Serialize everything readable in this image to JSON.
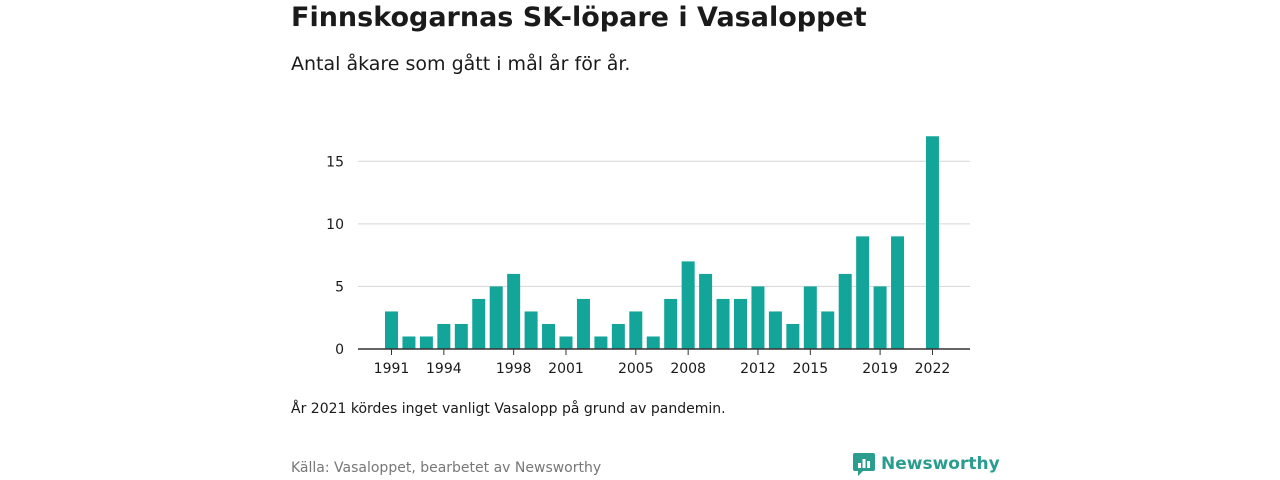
{
  "title": "Finnskogarnas SK-löpare i Vasaloppet",
  "subtitle": "Antal åkare som gått i mål år för år.",
  "note": "År 2021 kördes inget vanligt Vasalopp på grund av pandemin.",
  "source": "Källa: Vasaloppet, bearbetet av Newsworthy",
  "brand": {
    "name": "Newsworthy",
    "icon": "newsworthy-logo-icon",
    "color": "#2a9d8f"
  },
  "chart_data": {
    "type": "bar",
    "bar_color": "#13a59a",
    "grid": true,
    "ylim": [
      0,
      17.5
    ],
    "yticks": [
      0,
      5,
      10,
      15
    ],
    "xtick_labels": [
      "1991",
      "1994",
      "1998",
      "2001",
      "2005",
      "2008",
      "2012",
      "2015",
      "2019",
      "2022"
    ],
    "categories": [
      1991,
      1992,
      1993,
      1994,
      1995,
      1996,
      1997,
      1998,
      1999,
      2000,
      2001,
      2002,
      2003,
      2004,
      2005,
      2006,
      2007,
      2008,
      2009,
      2010,
      2011,
      2012,
      2013,
      2014,
      2015,
      2016,
      2017,
      2018,
      2019,
      2020,
      2021,
      2022
    ],
    "values": [
      3,
      1,
      1,
      2,
      2,
      4,
      5,
      6,
      3,
      2,
      1,
      4,
      1,
      2,
      3,
      1,
      4,
      7,
      6,
      4,
      4,
      5,
      3,
      2,
      5,
      3,
      6,
      9,
      5,
      9,
      null,
      17
    ],
    "xlabel": "",
    "ylabel": ""
  }
}
